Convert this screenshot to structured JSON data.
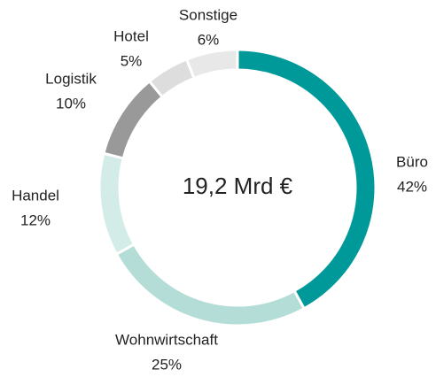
{
  "chart_data": {
    "type": "donut",
    "center_label": "19,2 Mrd €",
    "categories": [
      "Büro",
      "Wohnwirtschaft",
      "Handel",
      "Logistik",
      "Hotel",
      "Sonstige"
    ],
    "values": [
      42,
      25,
      12,
      10,
      5,
      6
    ],
    "value_labels": [
      "42%",
      "25%",
      "12%",
      "10%",
      "5%",
      "6%"
    ],
    "colors": [
      "#009999",
      "#b3ddd6",
      "#d4ece8",
      "#999999",
      "#dddddd",
      "#e8e8e8"
    ]
  }
}
